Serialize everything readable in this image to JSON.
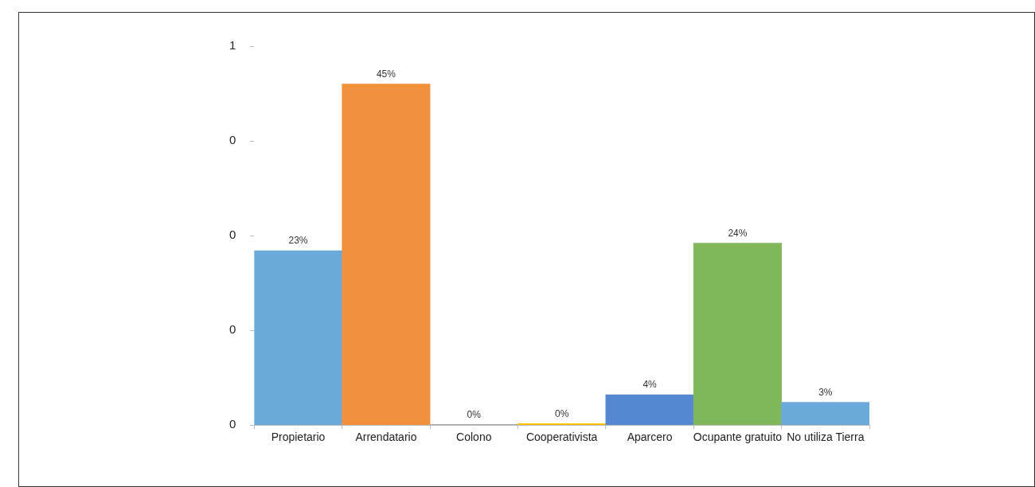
{
  "chart_data": {
    "type": "bar",
    "categories": [
      "Propietario",
      "Arrendatario",
      "Colono",
      "Cooperativista",
      "Aparcero",
      "Ocupante gratuito",
      "No utiliza Tierra"
    ],
    "values": [
      0.23,
      0.45,
      0.001,
      0.002,
      0.04,
      0.24,
      0.03
    ],
    "colors": [
      "#6aaadb",
      "#f2913d",
      "#a5a5a5",
      "#ffc000",
      "#5588d0",
      "#80b75a",
      "#6aaadb"
    ],
    "value_labels": [
      "23%",
      "45%",
      "0%",
      "0%",
      "4%",
      "24%",
      "3%"
    ],
    "ylim": [
      0,
      0.5
    ],
    "yticks": [
      {
        "value": 0,
        "label": "0"
      },
      {
        "value": 0.125,
        "label": "0"
      },
      {
        "value": 0.25,
        "label": "0"
      },
      {
        "value": 0.375,
        "label": "0"
      },
      {
        "value": 0.5,
        "label": "1"
      }
    ],
    "grid": false,
    "legend": false
  }
}
